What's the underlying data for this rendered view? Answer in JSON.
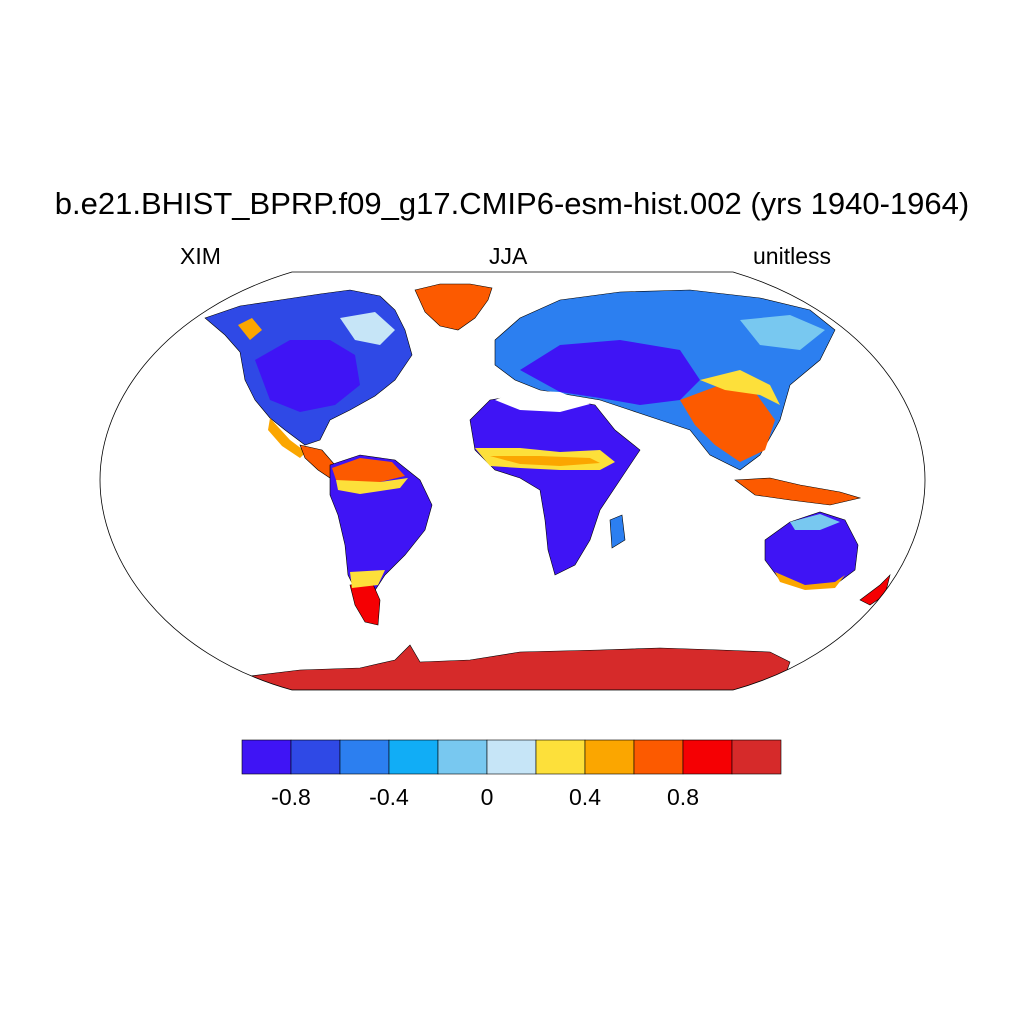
{
  "title": "b.e21.BHIST_BPRP.f09_g17.CMIP6-esm-hist.002 (yrs 1940-1964)",
  "left_label": "XIM",
  "center_label": "JJA",
  "right_label": "unitless",
  "colorbar": {
    "colors": [
      "#3f14f5",
      "#2f49e6",
      "#2c7ff0",
      "#11adf6",
      "#78c8f0",
      "#c6e5f7",
      "#fde03a",
      "#fba600",
      "#fc5a00",
      "#f50003",
      "#d62a2a"
    ],
    "tick_labels": [
      "-0.8",
      "-0.4",
      "0",
      "0.4",
      "0.8"
    ]
  },
  "legend_colors": {
    "ocean": "#ffffff",
    "outline": "#000000"
  }
}
